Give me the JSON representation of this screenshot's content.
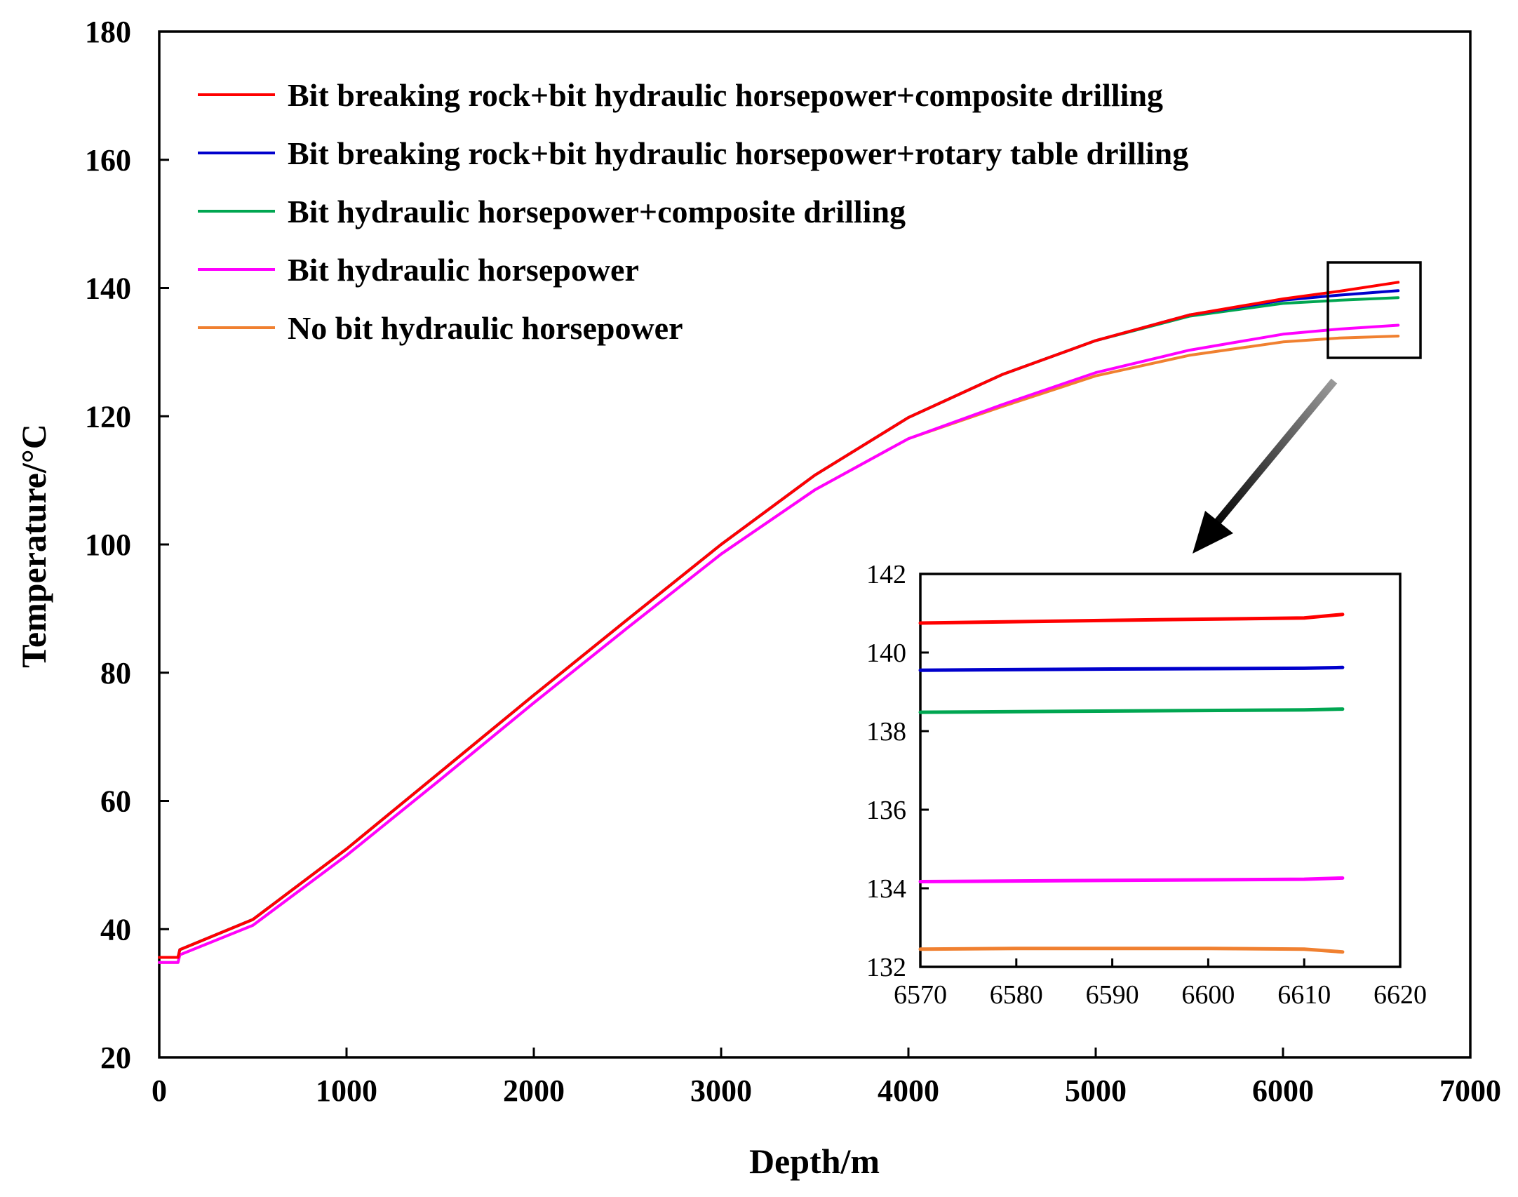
{
  "chart_data": [
    {
      "type": "line",
      "name": "main",
      "xlabel": "Depth/m",
      "ylabel": "Temperature/°C",
      "xlim": [
        0,
        7000
      ],
      "ylim": [
        20,
        180
      ],
      "xticks": [
        0,
        1000,
        2000,
        3000,
        4000,
        5000,
        6000,
        7000
      ],
      "yticks": [
        20,
        40,
        60,
        80,
        100,
        120,
        140,
        160,
        180
      ],
      "xtick_labels": [
        "0",
        "1000",
        "2000",
        "3000",
        "4000",
        "5000",
        "6000",
        "7000"
      ],
      "ytick_labels": [
        "20",
        "40",
        "60",
        "80",
        "100",
        "120",
        "140",
        "160",
        "180"
      ],
      "legend_position": "top-left",
      "series": [
        {
          "name": "Bit breaking rock+bit hydraulic horsepower+composite drilling",
          "color": "#ff0000",
          "x": [
            0,
            100,
            110,
            500,
            1000,
            1500,
            2000,
            2500,
            3000,
            3500,
            4000,
            4500,
            5000,
            5500,
            6000,
            6300,
            6615
          ],
          "y": [
            35.6,
            35.6,
            36.8,
            41.5,
            52.5,
            64.5,
            76.5,
            88.3,
            100.0,
            110.8,
            119.8,
            126.5,
            131.8,
            135.8,
            138.3,
            139.5,
            140.9
          ]
        },
        {
          "name": "Bit breaking rock+bit hydraulic horsepower+rotary table drilling",
          "color": "#0000cc",
          "x": [
            0,
            100,
            110,
            500,
            1000,
            1500,
            2000,
            2500,
            3000,
            3500,
            4000,
            4500,
            5000,
            5500,
            6000,
            6300,
            6615
          ],
          "y": [
            35.6,
            35.6,
            36.8,
            41.5,
            52.5,
            64.5,
            76.5,
            88.3,
            100.0,
            110.8,
            119.8,
            126.5,
            131.8,
            135.8,
            138.1,
            138.9,
            139.6
          ]
        },
        {
          "name": "Bit hydraulic horsepower+composite drilling",
          "color": "#00a651",
          "x": [
            0,
            100,
            110,
            500,
            1000,
            1500,
            2000,
            2500,
            3000,
            3500,
            4000,
            4500,
            5000,
            5500,
            6000,
            6300,
            6615
          ],
          "y": [
            35.6,
            35.6,
            36.8,
            41.5,
            52.5,
            64.5,
            76.5,
            88.3,
            100.0,
            110.8,
            119.8,
            126.5,
            131.8,
            135.6,
            137.6,
            138.1,
            138.5
          ]
        },
        {
          "name": "Bit hydraulic horsepower",
          "color": "#ff00ff",
          "x": [
            0,
            100,
            110,
            500,
            1000,
            1500,
            2000,
            2500,
            3000,
            3500,
            4000,
            4500,
            5000,
            5500,
            6000,
            6300,
            6615
          ],
          "y": [
            34.8,
            34.8,
            36.0,
            40.6,
            51.5,
            63.3,
            75.3,
            87.0,
            98.5,
            108.5,
            116.5,
            121.8,
            126.8,
            130.3,
            132.8,
            133.6,
            134.2
          ]
        },
        {
          "name": "No bit hydraulic horsepower",
          "color": "#f08030",
          "x": [
            0,
            100,
            110,
            500,
            1000,
            1500,
            2000,
            2500,
            3000,
            3500,
            4000,
            4500,
            5000,
            5500,
            6000,
            6300,
            6615
          ],
          "y": [
            34.8,
            34.8,
            36.0,
            40.6,
            51.5,
            63.3,
            75.3,
            87.0,
            98.5,
            108.5,
            116.5,
            121.5,
            126.3,
            129.5,
            131.6,
            132.2,
            132.5
          ]
        }
      ]
    },
    {
      "type": "line",
      "name": "inset",
      "xlim": [
        6570,
        6620
      ],
      "ylim": [
        132,
        142
      ],
      "xticks": [
        6570,
        6580,
        6590,
        6600,
        6610,
        6620
      ],
      "yticks": [
        132,
        134,
        136,
        138,
        140,
        142
      ],
      "xtick_labels": [
        "6570",
        "6580",
        "6590",
        "6600",
        "6610",
        "6620"
      ],
      "ytick_labels": [
        "132",
        "134",
        "136",
        "138",
        "140",
        "142"
      ],
      "series": [
        {
          "name": "Bit breaking rock+bit hydraulic horsepower+composite drilling",
          "color": "#ff0000",
          "x": [
            6570,
            6590,
            6610,
            6614
          ],
          "y": [
            140.75,
            140.82,
            140.88,
            140.97
          ]
        },
        {
          "name": "Bit breaking rock+bit hydraulic horsepower+rotary table drilling",
          "color": "#0000cc",
          "x": [
            6570,
            6590,
            6610,
            6614
          ],
          "y": [
            139.55,
            139.58,
            139.6,
            139.62
          ]
        },
        {
          "name": "Bit hydraulic horsepower+composite drilling",
          "color": "#00a651",
          "x": [
            6570,
            6590,
            6610,
            6614
          ],
          "y": [
            138.48,
            138.51,
            138.54,
            138.56
          ]
        },
        {
          "name": "Bit hydraulic horsepower",
          "color": "#ff00ff",
          "x": [
            6570,
            6590,
            6610,
            6614
          ],
          "y": [
            134.17,
            134.2,
            134.23,
            134.26
          ]
        },
        {
          "name": "No bit hydraulic horsepower",
          "color": "#f08030",
          "x": [
            6570,
            6580,
            6590,
            6600,
            6610,
            6614
          ],
          "y": [
            132.45,
            132.47,
            132.47,
            132.47,
            132.45,
            132.38
          ]
        }
      ]
    }
  ]
}
